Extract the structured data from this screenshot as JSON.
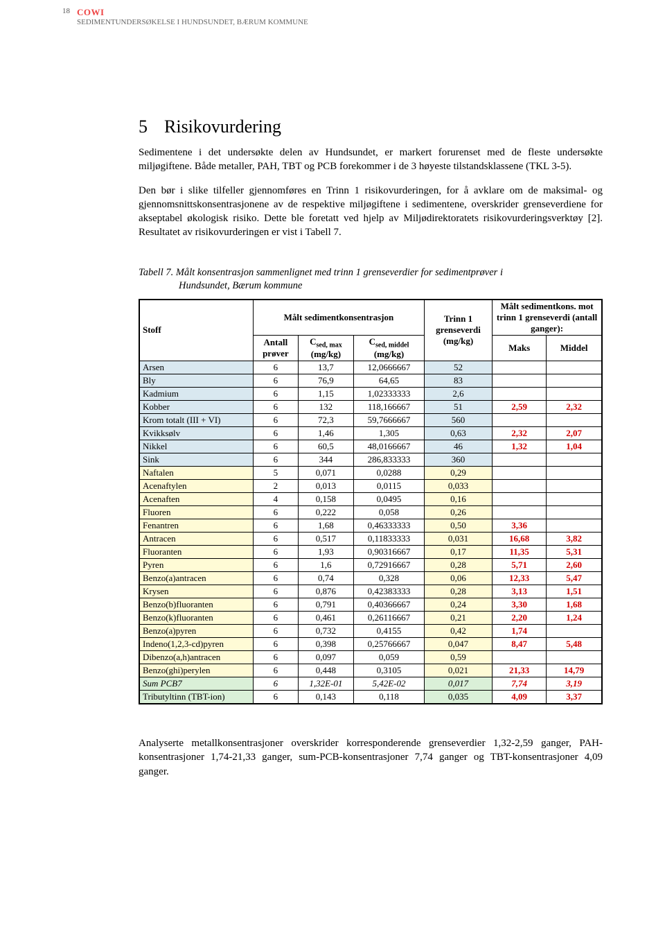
{
  "header": {
    "page_number": "18",
    "logo": "COWI",
    "doc_title": "SEDIMENTUNDERSØKELSE I HUNDSUNDET, BÆRUM KOMMUNE"
  },
  "section": {
    "number": "5",
    "title": "Risikovurdering"
  },
  "paragraphs": {
    "p1": "Sedimentene i det undersøkte delen av Hundsundet, er markert forurenset med de fleste undersøkte miljøgiftene. Både metaller, PAH, TBT og PCB forekommer i de 3 høyeste tilstandsklassene (TKL 3-5).",
    "p2": "Den bør i slike tilfeller gjennomføres en Trinn 1 risikovurderingen, for å avklare om de maksimal- og gjennomsnittskonsentrasjonene av de respektive miljøgiftene i sedimentene, overskrider grenseverdiene for akseptabel økologisk risiko. Dette ble foretatt ved hjelp av Miljødirektoratets risikovurderingsverktøy [2]. Resultatet av risikovurderingen er vist i Tabell 7."
  },
  "table_caption": {
    "prefix": "Tabell 7.",
    "line1": "Målt konsentrasjon sammenlignet med trinn 1 grenseverdier for sedimentprøver i",
    "line2": "Hundsundet, Bærum kommune"
  },
  "table": {
    "headers": {
      "stoff": "Stoff",
      "measured": "Målt sedimentkonsentrasjon",
      "antall": "Antall prøver",
      "cmax_label": "C",
      "cmax_sub": "sed",
      "cmax_suffix": ", max",
      "cmax_unit": "(mg/kg)",
      "cmid_label": "C",
      "cmid_sub": "sed, middel",
      "cmid_unit": "(mg/kg)",
      "threshold": "Trinn 1 grenseverdi (mg/kg)",
      "ratio_header": "Målt sedimentkons. mot trinn 1 grenseverdi (antall ganger):",
      "maks": "Maks",
      "middel": "Middel"
    },
    "rows": [
      {
        "name": "Arsen",
        "n": "6",
        "max": "13,7",
        "mid": "12,0666667",
        "thresh": "52",
        "maks": "",
        "middel": "",
        "bg": "blue"
      },
      {
        "name": "Bly",
        "n": "6",
        "max": "76,9",
        "mid": "64,65",
        "thresh": "83",
        "maks": "",
        "middel": "",
        "bg": "blue"
      },
      {
        "name": "Kadmium",
        "n": "6",
        "max": "1,15",
        "mid": "1,02333333",
        "thresh": "2,6",
        "maks": "",
        "middel": "",
        "bg": "blue"
      },
      {
        "name": "Kobber",
        "n": "6",
        "max": "132",
        "mid": "118,166667",
        "thresh": "51",
        "maks": "2,59",
        "middel": "2,32",
        "bg": "blue",
        "red": true
      },
      {
        "name": "Krom totalt (III + VI)",
        "n": "6",
        "max": "72,3",
        "mid": "59,7666667",
        "thresh": "560",
        "maks": "",
        "middel": "",
        "bg": "blue"
      },
      {
        "name": "Kvikksølv",
        "n": "6",
        "max": "1,46",
        "mid": "1,305",
        "thresh": "0,63",
        "maks": "2,32",
        "middel": "2,07",
        "bg": "blue",
        "red": true
      },
      {
        "name": "Nikkel",
        "n": "6",
        "max": "60,5",
        "mid": "48,0166667",
        "thresh": "46",
        "maks": "1,32",
        "middel": "1,04",
        "bg": "blue",
        "red": true
      },
      {
        "name": "Sink",
        "n": "6",
        "max": "344",
        "mid": "286,833333",
        "thresh": "360",
        "maks": "",
        "middel": "",
        "bg": "blue"
      },
      {
        "name": "Naftalen",
        "n": "5",
        "max": "0,071",
        "mid": "0,0288",
        "thresh": "0,29",
        "maks": "",
        "middel": "",
        "bg": "yellow"
      },
      {
        "name": "Acenaftylen",
        "n": "2",
        "max": "0,013",
        "mid": "0,0115",
        "thresh": "0,033",
        "maks": "",
        "middel": "",
        "bg": "yellow"
      },
      {
        "name": "Acenaften",
        "n": "4",
        "max": "0,158",
        "mid": "0,0495",
        "thresh": "0,16",
        "maks": "",
        "middel": "",
        "bg": "yellow"
      },
      {
        "name": "Fluoren",
        "n": "6",
        "max": "0,222",
        "mid": "0,058",
        "thresh": "0,26",
        "maks": "",
        "middel": "",
        "bg": "yellow"
      },
      {
        "name": "Fenantren",
        "n": "6",
        "max": "1,68",
        "mid": "0,46333333",
        "thresh": "0,50",
        "maks": "3,36",
        "middel": "",
        "bg": "yellow",
        "red": true
      },
      {
        "name": "Antracen",
        "n": "6",
        "max": "0,517",
        "mid": "0,11833333",
        "thresh": "0,031",
        "maks": "16,68",
        "middel": "3,82",
        "bg": "yellow",
        "red": true
      },
      {
        "name": "Fluoranten",
        "n": "6",
        "max": "1,93",
        "mid": "0,90316667",
        "thresh": "0,17",
        "maks": "11,35",
        "middel": "5,31",
        "bg": "yellow",
        "red": true
      },
      {
        "name": "Pyren",
        "n": "6",
        "max": "1,6",
        "mid": "0,72916667",
        "thresh": "0,28",
        "maks": "5,71",
        "middel": "2,60",
        "bg": "yellow",
        "red": true
      },
      {
        "name": "Benzo(a)antracen",
        "n": "6",
        "max": "0,74",
        "mid": "0,328",
        "thresh": "0,06",
        "maks": "12,33",
        "middel": "5,47",
        "bg": "yellow",
        "red": true
      },
      {
        "name": "Krysen",
        "n": "6",
        "max": "0,876",
        "mid": "0,42383333",
        "thresh": "0,28",
        "maks": "3,13",
        "middel": "1,51",
        "bg": "yellow",
        "red": true
      },
      {
        "name": "Benzo(b)fluoranten",
        "n": "6",
        "max": "0,791",
        "mid": "0,40366667",
        "thresh": "0,24",
        "maks": "3,30",
        "middel": "1,68",
        "bg": "yellow",
        "red": true
      },
      {
        "name": "Benzo(k)fluoranten",
        "n": "6",
        "max": "0,461",
        "mid": "0,26116667",
        "thresh": "0,21",
        "maks": "2,20",
        "middel": "1,24",
        "bg": "yellow",
        "red": true
      },
      {
        "name": "Benzo(a)pyren",
        "n": "6",
        "max": "0,732",
        "mid": "0,4155",
        "thresh": "0,42",
        "maks": "1,74",
        "middel": "",
        "bg": "yellow",
        "red": true
      },
      {
        "name": "Indeno(1,2,3-cd)pyren",
        "n": "6",
        "max": "0,398",
        "mid": "0,25766667",
        "thresh": "0,047",
        "maks": "8,47",
        "middel": "5,48",
        "bg": "yellow",
        "red": true
      },
      {
        "name": "Dibenzo(a,h)antracen",
        "n": "6",
        "max": "0,097",
        "mid": "0,059",
        "thresh": "0,59",
        "maks": "",
        "middel": "",
        "bg": "yellow"
      },
      {
        "name": "Benzo(ghi)perylen",
        "n": "6",
        "max": "0,448",
        "mid": "0,3105",
        "thresh": "0,021",
        "maks": "21,33",
        "middel": "14,79",
        "bg": "yellow",
        "red": true
      },
      {
        "name": "Sum PCB7",
        "n": "6",
        "max": "1,32E-01",
        "mid": "5,42E-02",
        "thresh": "0,017",
        "maks": "7,74",
        "middel": "3,19",
        "bg": "green",
        "italic": true,
        "red": true
      },
      {
        "name": "Tributyltinn (TBT-ion)",
        "n": "6",
        "max": "0,143",
        "mid": "0,118",
        "thresh": "0,035",
        "maks": "4,09",
        "middel": "3,37",
        "bg": "green",
        "red": true
      }
    ]
  },
  "footer_paragraph": "Analyserte metallkonsentrasjoner overskrider korresponderende grenseverdier 1,32-2,59 ganger, PAH-konsentrasjoner 1,74-21,33 ganger, sum-PCB-konsentrasjoner 7,74 ganger og TBT-konsentrasjoner 4,09 ganger."
}
